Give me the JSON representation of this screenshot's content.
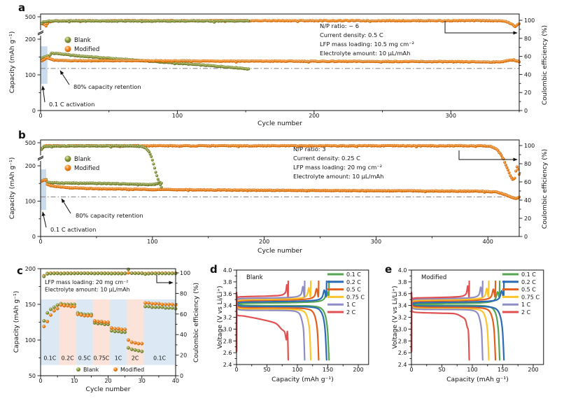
{
  "figure_colors": {
    "blank_fill": "#8f9c3f",
    "blank_stroke": "#5a661e",
    "blank_hi": "#e7edbb",
    "modified_fill": "#f5861e",
    "modified_stroke": "#bf5e04",
    "modified_hi": "#ffdfb0",
    "retention_line": "#8c8c8c",
    "activation_band": "#bdd2e8",
    "band_blue": "#dce9f4",
    "band_pink": "#fbe3da",
    "axis": "#111111"
  },
  "chart_data": [
    {
      "id": "a",
      "type": "scatter",
      "panel_label": "a",
      "xlabel": "Cycle number",
      "ylabel": "Capacity (mAh g⁻¹)",
      "y2label": "Coulombic efficiency (%)",
      "xlim": [
        0,
        350
      ],
      "x_ticks": [
        0,
        100,
        200,
        300
      ],
      "cap_ticks": [
        0,
        100,
        200
      ],
      "cap_break_tick": 500,
      "y2lim": [
        0,
        100
      ],
      "y2_ticks": [
        0,
        20,
        40,
        60,
        80,
        100
      ],
      "annotations": [
        "N/P ratio: ~ 6",
        "Current density: 0.5 C",
        "LFP mass loading: 10.5 mg cm⁻²",
        "Electrolyte amount: 10  μL/mAh"
      ],
      "legend": [
        "Blank",
        "Modified"
      ],
      "retention_label": "80% capacity retention",
      "retention_value": 118,
      "activation_label": "0.1 C activation",
      "activation_region": [
        0,
        5
      ],
      "series": [
        {
          "name": "blank-capacity",
          "axis": "cap",
          "color": "blank",
          "keypoints": [
            [
              1,
              146
            ],
            [
              2,
              149
            ],
            [
              4,
              152
            ],
            [
              5,
              153
            ],
            [
              6,
              150
            ],
            [
              8,
              161
            ],
            [
              12,
              160
            ],
            [
              25,
              154
            ],
            [
              45,
              148
            ],
            [
              70,
              141
            ],
            [
              95,
              134
            ],
            [
              120,
              127
            ],
            [
              140,
              121
            ],
            [
              152,
              117
            ]
          ]
        },
        {
          "name": "modified-capacity",
          "axis": "cap",
          "color": "modified",
          "keypoints": [
            [
              1,
              140
            ],
            [
              3,
              144
            ],
            [
              5,
              148
            ],
            [
              6,
              146
            ],
            [
              10,
              141
            ],
            [
              20,
              140
            ],
            [
              100,
              139
            ],
            [
              200,
              138
            ],
            [
              300,
              137
            ],
            [
              335,
              136
            ],
            [
              342,
              140
            ],
            [
              346,
              142
            ],
            [
              350,
              137
            ]
          ]
        },
        {
          "name": "modified-ce",
          "axis": "ce",
          "color": "modified",
          "keypoints": [
            [
              1,
              97
            ],
            [
              4,
              93.5
            ],
            [
              6,
              98
            ],
            [
              10,
              99.5
            ],
            [
              330,
              99.6
            ],
            [
              340,
              99
            ],
            [
              344,
              96
            ],
            [
              347,
              93.5
            ],
            [
              350,
              96
            ]
          ]
        },
        {
          "name": "blank-ce",
          "axis": "ce",
          "color": "blank",
          "keypoints": [
            [
              1,
              96
            ],
            [
              2,
              98.5
            ],
            [
              5,
              99
            ],
            [
              10,
              99.2
            ],
            [
              152,
              99.2
            ]
          ]
        }
      ]
    },
    {
      "id": "b",
      "type": "scatter",
      "panel_label": "b",
      "xlabel": "Cycle number",
      "ylabel": "Capacity (mAh g⁻¹)",
      "y2label": "Coulombic efficiency (%)",
      "xlim": [
        0,
        428
      ],
      "x_ticks": [
        0,
        100,
        200,
        300,
        400
      ],
      "cap_ticks": [
        0,
        100,
        200
      ],
      "cap_break_tick": 500,
      "y2lim": [
        0,
        100
      ],
      "y2_ticks": [
        0,
        20,
        40,
        60,
        80,
        100
      ],
      "annotations": [
        "N/P ratio: 3",
        "Current density: 0.25 C",
        "LFP mass loading: 20 mg cm⁻²",
        "Electrolyte amount: 10 μL/mAh"
      ],
      "legend": [
        "Blank",
        "Modified"
      ],
      "retention_label": "80% capacity retention",
      "retention_value": 112,
      "activation_label": "0.1 C activation",
      "activation_region": [
        0,
        5
      ],
      "series": [
        {
          "name": "blank-capacity",
          "axis": "cap",
          "color": "blank",
          "keypoints": [
            [
              1,
              157
            ],
            [
              3,
              160
            ],
            [
              5,
              161
            ],
            [
              6,
              154
            ],
            [
              10,
              152
            ],
            [
              30,
              151
            ],
            [
              60,
              150
            ],
            [
              85,
              148
            ],
            [
              95,
              147
            ],
            [
              100,
              147
            ],
            [
              104,
              149
            ],
            [
              108,
              152
            ]
          ]
        },
        {
          "name": "modified-capacity",
          "axis": "cap",
          "color": "modified",
          "keypoints": [
            [
              1,
              156
            ],
            [
              3,
              159
            ],
            [
              5,
              160
            ],
            [
              6,
              147
            ],
            [
              12,
              142
            ],
            [
              25,
              138
            ],
            [
              50,
              135
            ],
            [
              100,
              133
            ],
            [
              180,
              131
            ],
            [
              260,
              130
            ],
            [
              340,
              129
            ],
            [
              395,
              128
            ],
            [
              408,
              126
            ],
            [
              414,
              120
            ],
            [
              419,
              114
            ],
            [
              423,
              109
            ],
            [
              426,
              108
            ],
            [
              428,
              111
            ]
          ]
        },
        {
          "name": "modified-ce",
          "axis": "ce",
          "color": "modified",
          "keypoints": [
            [
              1,
              97
            ],
            [
              5,
              99.7
            ],
            [
              395,
              99.7
            ],
            [
              403,
              99
            ],
            [
              408,
              96
            ],
            [
              411,
              91
            ],
            [
              414,
              85
            ],
            [
              416,
              79
            ],
            [
              418,
              73
            ],
            [
              420,
              67
            ],
            [
              422,
              63
            ],
            [
              424,
              64
            ],
            [
              425,
              72
            ],
            [
              426,
              77
            ],
            [
              427,
              74
            ],
            [
              428,
              68
            ]
          ]
        },
        {
          "name": "blank-ce",
          "axis": "ce",
          "color": "blank",
          "keypoints": [
            [
              1,
              96
            ],
            [
              3,
              99
            ],
            [
              10,
              99.5
            ],
            [
              85,
              99.5
            ],
            [
              90,
              99
            ],
            [
              94,
              97
            ],
            [
              97,
              93
            ],
            [
              99,
              88
            ],
            [
              101,
              80
            ],
            [
              103,
              71
            ],
            [
              105,
              63
            ],
            [
              107,
              57
            ],
            [
              108,
              54
            ]
          ]
        }
      ]
    },
    {
      "id": "c",
      "type": "scatter",
      "panel_label": "c",
      "xlabel": "Cycle number",
      "ylabel": "Capacity (mAh g⁻¹)",
      "y2label": "Coulombic efficiency (%)",
      "xlim": [
        0,
        40
      ],
      "x_ticks": [
        0,
        10,
        20,
        30,
        40
      ],
      "cap_lim": [
        50,
        200
      ],
      "cap_ticks": [
        50,
        100,
        150,
        200
      ],
      "y2lim": [
        0,
        100
      ],
      "y2_ticks": [
        0,
        20,
        40,
        60,
        80,
        100
      ],
      "annotations": [
        "LFP mass loading: 20 mg cm⁻²",
        "Electrolyte amount: 10 μL/mAh"
      ],
      "legend": [
        "Blank",
        "Modified"
      ],
      "rate_bands": [
        {
          "label": "0.1C",
          "from": 0,
          "to": 5.5,
          "tone": "blue"
        },
        {
          "label": "0.2C",
          "from": 5.5,
          "to": 10.5,
          "tone": "pink"
        },
        {
          "label": "0.5C",
          "from": 10.5,
          "to": 15.5,
          "tone": "blue"
        },
        {
          "label": "0.75C",
          "from": 15.5,
          "to": 20.5,
          "tone": "pink"
        },
        {
          "label": "1C",
          "from": 20.5,
          "to": 25.5,
          "tone": "blue"
        },
        {
          "label": "2C",
          "from": 25.5,
          "to": 30.5,
          "tone": "pink"
        },
        {
          "label": "0.1C",
          "from": 30.5,
          "to": 40,
          "tone": "blue"
        }
      ],
      "blank_capacity": [
        127,
        138,
        143,
        146,
        149,
        151,
        150,
        150,
        150,
        150,
        138,
        137,
        136,
        136,
        136,
        124,
        123,
        123,
        122,
        122,
        113,
        112,
        112,
        111,
        111,
        89,
        87,
        86,
        85,
        84,
        147,
        147,
        146,
        146,
        146,
        146,
        145,
        145,
        145,
        144
      ],
      "modified_capacity": [
        119,
        126,
        135,
        141,
        144,
        149,
        148,
        148,
        147,
        147,
        136,
        135,
        134,
        134,
        134,
        127,
        126,
        126,
        125,
        125,
        117,
        116,
        116,
        115,
        115,
        100,
        97,
        96,
        95,
        95,
        152,
        152,
        151,
        151,
        151,
        150,
        150,
        150,
        150,
        149
      ],
      "blank_ce": [
        96.5,
        99,
        99.3,
        99.4,
        99.4,
        99.2,
        99.3,
        99.4,
        99.3,
        99.4,
        99.5,
        99.4,
        99.5,
        99.4,
        99.5,
        99.3,
        99.4,
        99.4,
        99.3,
        99.4,
        99.2,
        99.3,
        99.3,
        99.2,
        99.3,
        103.5,
        99.6,
        99.5,
        99.5,
        99.4,
        98.8,
        99.2,
        99.3,
        99.3,
        99.4,
        99.4,
        99.3,
        99.4,
        99.3,
        99.4
      ],
      "modified_ce": [
        97.2,
        99.5,
        99.7,
        99.8,
        99.8,
        99.6,
        99.7,
        99.8,
        99.7,
        99.8,
        99.8,
        99.7,
        99.8,
        99.8,
        99.7,
        99.6,
        99.7,
        99.7,
        99.8,
        99.7,
        99.6,
        99.7,
        99.7,
        99.6,
        99.7,
        99.9,
        99.8,
        99.8,
        99.7,
        99.8,
        99.3,
        99.6,
        99.7,
        99.7,
        99.8,
        99.7,
        99.8,
        99.7,
        99.8,
        99.7
      ]
    },
    {
      "id": "d",
      "type": "line",
      "panel_label": "d",
      "title": "Blank",
      "xlabel": "Capacity (mAh g⁻¹)",
      "ylabel": "Voltage (V vs Li/Li⁺)",
      "xlim": [
        0,
        217
      ],
      "x_ticks": [
        0,
        50,
        100,
        150,
        200
      ],
      "ylim": [
        2.4,
        4.0
      ],
      "y_ticks": [
        2.4,
        2.6,
        2.8,
        3.0,
        3.2,
        3.4,
        3.6,
        3.8,
        4.0
      ],
      "rates": [
        {
          "label": "0.1 C",
          "color": "#55a552",
          "capacity": 152,
          "charge_plateau": 3.44,
          "discharge_plateau": 3.4
        },
        {
          "label": "0.2 C",
          "color": "#2c6cb5",
          "capacity": 148,
          "charge_plateau": 3.46,
          "discharge_plateau": 3.385
        },
        {
          "label": "0.5 C",
          "color": "#e2601d",
          "capacity": 135,
          "charge_plateau": 3.485,
          "discharge_plateau": 3.36
        },
        {
          "label": "0.75 C",
          "color": "#fdc42c",
          "capacity": 122,
          "charge_plateau": 3.5,
          "discharge_plateau": 3.34
        },
        {
          "label": "1 C",
          "color": "#8e8dc6",
          "capacity": 112,
          "charge_plateau": 3.52,
          "discharge_plateau": 3.32
        },
        {
          "label": "2 C",
          "color": "#e05252",
          "capacity": 85,
          "charge_plateau": 3.55,
          "discharge_plateau": 3.22,
          "mid": 3.1,
          "knee": 3.0
        }
      ]
    },
    {
      "id": "e",
      "type": "line",
      "panel_label": "e",
      "title": "Modified",
      "xlabel": "Capacity (mAh g⁻¹)",
      "ylabel": "Voltage (V vs Li/Li⁺)",
      "xlim": [
        0,
        217
      ],
      "x_ticks": [
        0,
        50,
        100,
        150,
        200
      ],
      "ylim": [
        2.4,
        4.0
      ],
      "y_ticks": [
        2.4,
        2.6,
        2.8,
        3.0,
        3.2,
        3.4,
        3.6,
        3.8,
        4.0
      ],
      "rates": [
        {
          "label": "0.1 C",
          "color": "#55a552",
          "capacity": 145,
          "charge_plateau": 3.43,
          "discharge_plateau": 3.405
        },
        {
          "label": "0.2 C",
          "color": "#2c6cb5",
          "capacity": 152,
          "charge_plateau": 3.45,
          "discharge_plateau": 3.39
        },
        {
          "label": "0.5 C",
          "color": "#e2601d",
          "capacity": 138,
          "charge_plateau": 3.475,
          "discharge_plateau": 3.37
        },
        {
          "label": "0.75 C",
          "color": "#fdc42c",
          "capacity": 127,
          "charge_plateau": 3.49,
          "discharge_plateau": 3.35
        },
        {
          "label": "1 C",
          "color": "#8e8dc6",
          "capacity": 117,
          "charge_plateau": 3.51,
          "discharge_plateau": 3.335
        },
        {
          "label": "2 C",
          "color": "#e05252",
          "capacity": 95,
          "charge_plateau": 3.53,
          "discharge_plateau": 3.28,
          "mid": 3.26,
          "knee": 3.21
        }
      ]
    }
  ]
}
